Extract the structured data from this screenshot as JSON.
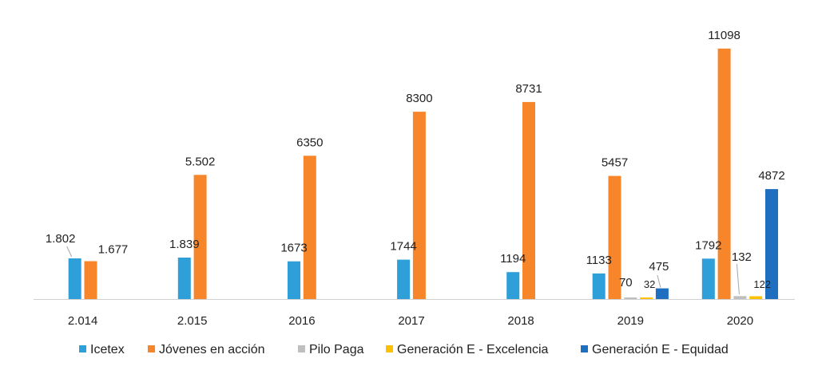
{
  "chart_data": {
    "type": "bar",
    "categories": [
      "2.014",
      "2.015",
      "2016",
      "2017",
      "2018",
      "2019",
      "2020"
    ],
    "series": [
      {
        "name": "Icetex",
        "color": "#2e9fd8",
        "values": [
          1802,
          1839,
          1673,
          1744,
          1194,
          1133,
          1792
        ],
        "labels": [
          "1.802",
          "1.839",
          "1673",
          "1744",
          "1194",
          "1133",
          "1792"
        ]
      },
      {
        "name": "Jóvenes en acción",
        "color": "#f7852a",
        "values": [
          1677,
          5502,
          6350,
          8300,
          8731,
          5457,
          11098
        ],
        "labels": [
          "1.677",
          "5.502",
          "6350",
          "8300",
          "8731",
          "5457",
          "11098"
        ]
      },
      {
        "name": "Pilo Paga",
        "color": "#bfbfbf",
        "values": [
          null,
          null,
          null,
          null,
          null,
          70,
          132
        ],
        "labels": [
          "",
          "",
          "",
          "",
          "",
          "70",
          "132"
        ]
      },
      {
        "name": "Generación E - Excelencia",
        "color": "#ffc000",
        "values": [
          null,
          null,
          null,
          null,
          null,
          32,
          122
        ],
        "labels": [
          "",
          "",
          "",
          "",
          "",
          "32",
          "122"
        ]
      },
      {
        "name": "Generación E - Equidad",
        "color": "#1f6fc0",
        "values": [
          null,
          null,
          null,
          null,
          null,
          475,
          4872
        ],
        "labels": [
          "",
          "",
          "",
          "",
          "",
          "475",
          "4872"
        ]
      }
    ],
    "ylim": [
      0,
      12000
    ],
    "grid": false,
    "legend_position": "bottom"
  }
}
